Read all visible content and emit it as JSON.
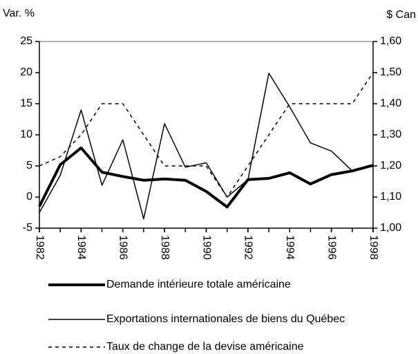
{
  "chart_data": {
    "type": "line",
    "y_label": "Var. %",
    "y2_label": "$ Can",
    "x": [
      1982,
      1983,
      1984,
      1985,
      1986,
      1987,
      1988,
      1989,
      1990,
      1991,
      1992,
      1993,
      1994,
      1995,
      1996,
      1997,
      1998
    ],
    "xlim": [
      1982,
      1998
    ],
    "xticks": [
      1982,
      1984,
      1986,
      1988,
      1990,
      1992,
      1994,
      1996,
      1998
    ],
    "ylim": [
      -5,
      25
    ],
    "yticks": [
      -5,
      0,
      5,
      10,
      15,
      20,
      25
    ],
    "y2lim": [
      1.0,
      1.6
    ],
    "y2ticks": [
      {
        "value": 1.0,
        "label": "1,00"
      },
      {
        "value": 1.1,
        "label": "1,10"
      },
      {
        "value": 1.2,
        "label": "1,20"
      },
      {
        "value": 1.3,
        "label": "1,30"
      },
      {
        "value": 1.4,
        "label": "1,40"
      },
      {
        "value": 1.5,
        "label": "1,50"
      },
      {
        "value": 1.6,
        "label": "1,60"
      }
    ],
    "series": [
      {
        "name": "Demande intérieure totale américaine",
        "color": "#000000",
        "line_width": 4,
        "dash": false,
        "values": [
          -1.5,
          5.2,
          7.9,
          4.0,
          3.3,
          2.7,
          2.9,
          2.7,
          0.9,
          -1.6,
          2.8,
          3.0,
          3.9,
          2.1,
          3.6,
          4.2,
          5.1
        ]
      },
      {
        "name": "Exportations internationales de biens du Québec",
        "color": "#000000",
        "line_width": 1.5,
        "dash": false,
        "values": [
          -2.5,
          3.5,
          14.0,
          1.9,
          9.2,
          -3.5,
          11.8,
          4.8,
          5.5,
          0.0,
          2.8,
          19.9,
          14.5,
          8.7,
          7.4,
          4.2,
          5.2
        ]
      },
      {
        "name": "Taux de change de la devise américaine",
        "color": "#000000",
        "line_width": 1.5,
        "dash": true,
        "axis": "y2",
        "values": [
          1.2,
          1.23,
          1.3,
          1.4,
          1.4,
          1.3,
          1.2,
          1.2,
          1.2,
          1.1,
          1.2,
          1.3,
          1.4,
          1.4,
          1.4,
          1.4,
          1.5
        ]
      }
    ]
  }
}
